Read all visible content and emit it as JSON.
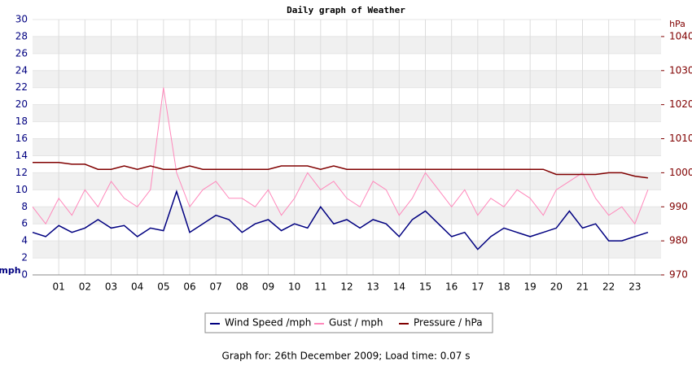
{
  "chart_data": {
    "type": "line",
    "title": "Daily graph of Weather",
    "y_label": "mph",
    "y2_label": "hPa",
    "x": [
      0,
      0.5,
      1,
      1.5,
      2,
      2.5,
      3,
      3.5,
      4,
      4.5,
      5,
      5.5,
      6,
      6.5,
      7,
      7.5,
      8,
      8.5,
      9,
      9.5,
      10,
      10.5,
      11,
      11.5,
      12,
      12.5,
      13,
      13.5,
      14,
      14.5,
      15,
      15.5,
      16,
      16.5,
      17,
      17.5,
      18,
      18.5,
      19,
      19.5,
      20,
      20.5,
      21,
      21.5,
      22,
      22.5,
      23,
      23.5
    ],
    "xlim": [
      0,
      24
    ],
    "xticks": [
      {
        "value": 1,
        "label": "01"
      },
      {
        "value": 2,
        "label": "02"
      },
      {
        "value": 3,
        "label": "03"
      },
      {
        "value": 4,
        "label": "04"
      },
      {
        "value": 5,
        "label": "05"
      },
      {
        "value": 6,
        "label": "06"
      },
      {
        "value": 7,
        "label": "07"
      },
      {
        "value": 8,
        "label": "08"
      },
      {
        "value": 9,
        "label": "09"
      },
      10,
      11,
      12,
      13,
      14,
      15,
      16,
      17,
      18,
      19,
      20,
      21,
      22,
      23
    ],
    "ylim": [
      0,
      30
    ],
    "yticks": [
      0,
      2,
      4,
      6,
      8,
      10,
      12,
      14,
      16,
      18,
      20,
      22,
      24,
      26,
      28,
      30
    ],
    "y2lim": [
      970,
      1045
    ],
    "y2ticks": [
      970,
      980,
      990,
      1000,
      1010,
      1020,
      1030,
      1040
    ],
    "grid": true,
    "legend": "bottom",
    "series": [
      {
        "name": "Wind Speed /mph",
        "color": "#000080",
        "values": [
          5,
          4.5,
          5.8,
          5,
          5.5,
          6.5,
          5.5,
          5.8,
          4.5,
          5.5,
          5.2,
          9.8,
          5,
          6,
          7,
          6.5,
          5,
          6,
          6.5,
          5.2,
          6,
          5.5,
          8,
          6,
          6.5,
          5.5,
          6.5,
          6,
          4.5,
          6.5,
          7.5,
          6,
          4.5,
          5,
          3,
          4.5,
          5.5,
          5,
          4.5,
          5,
          5.5,
          7.5,
          5.5,
          6,
          4,
          4,
          4.5,
          5
        ]
      },
      {
        "name": "Gust / mph",
        "color": "#ff88bb",
        "values": [
          8,
          6,
          9,
          7,
          10,
          8,
          11,
          9,
          8,
          10,
          22,
          12,
          8,
          10,
          11,
          9,
          9,
          8,
          10,
          7,
          9,
          12,
          10,
          11,
          9,
          8,
          11,
          10,
          7,
          9,
          12,
          10,
          8,
          10,
          7,
          9,
          8,
          10,
          9,
          7,
          10,
          11,
          12,
          9,
          7,
          8,
          6,
          10
        ]
      },
      {
        "name": "Pressure / hPa",
        "color": "#800000",
        "axis": "y2",
        "values": [
          1003,
          1003,
          1003,
          1002.5,
          1002.5,
          1001,
          1001,
          1002,
          1001,
          1002,
          1001,
          1001,
          1002,
          1001,
          1001,
          1001,
          1001,
          1001,
          1001,
          1002,
          1002,
          1002,
          1001,
          1002,
          1001,
          1001,
          1001,
          1001,
          1001,
          1001,
          1001,
          1001,
          1001,
          1001,
          1001,
          1001,
          1001,
          1001,
          1001,
          1001,
          999.5,
          999.5,
          999.5,
          999.5,
          1000,
          1000,
          999,
          998.5
        ]
      }
    ]
  },
  "footer": "Graph for: 26th December 2009; Load time: 0.07 s"
}
